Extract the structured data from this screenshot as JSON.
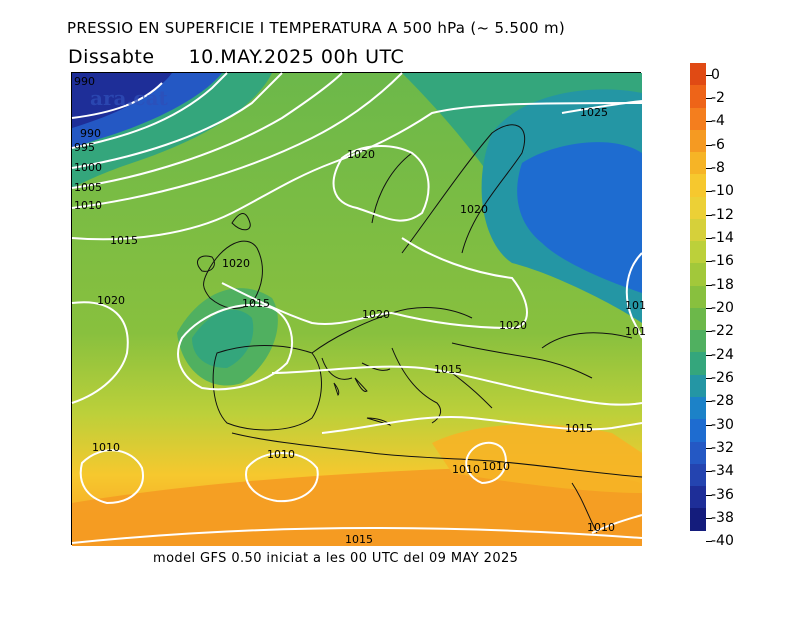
{
  "header": {
    "title": "PRESSIO EN SUPERFICIE I TEMPERATURA A 500 hPa (~ 5.500 m)",
    "day": "Dissabte",
    "datetime": "10.MAY.2025 00h UTC"
  },
  "footer": "model GFS 0.50 iniciat a les 00 UTC del 09 MAY 2025",
  "watermark": "ara.cat",
  "legend": {
    "labels": [
      "0",
      "-2",
      "-4",
      "-6",
      "-8",
      "-10",
      "-12",
      "-14",
      "-16",
      "-18",
      "-20",
      "-22",
      "-24",
      "-26",
      "-28",
      "-30",
      "-32",
      "-34",
      "-36",
      "-38",
      "-40"
    ],
    "colors": [
      "#e04a14",
      "#ee6418",
      "#f47e1e",
      "#f59a22",
      "#f6b426",
      "#f6c82e",
      "#ecd036",
      "#d6d03a",
      "#bcd03a",
      "#a2c83a",
      "#88c03e",
      "#6cb84a",
      "#50b060",
      "#34a67c",
      "#2496a4",
      "#1c82c8",
      "#1e6cd0",
      "#2458c4",
      "#2444b0",
      "#1e2e98",
      "#141c7c"
    ]
  },
  "isobars": [
    "990",
    "995",
    "1000",
    "1005",
    "1010",
    "1015",
    "1020",
    "1025"
  ],
  "isobar_labels": {
    "l990a": "990",
    "l990b": "990",
    "l995": "995",
    "l1000": "1000",
    "l1005": "1005",
    "l1010a": "1010",
    "l1015a": "1015",
    "l1020a": "1020",
    "l1020b": "1020",
    "l1020c": "1020",
    "l1020d": "1020",
    "l1020e": "1020",
    "l1020f": "1020",
    "l1025": "1025",
    "l1015b": "1015",
    "l1015c": "1015",
    "l1015d": "1015",
    "l1015e": "1015",
    "l1010b": "1010",
    "l1010c": "1010",
    "l1010d": "1010",
    "l1010e": "1010",
    "l1010f": "1010",
    "l101a": "101",
    "l101b": "101"
  }
}
